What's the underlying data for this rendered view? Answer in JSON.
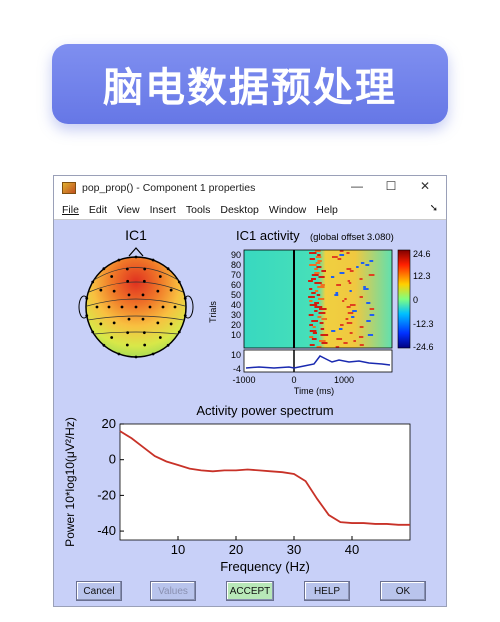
{
  "banner": {
    "title": "脑电数据预处理"
  },
  "window": {
    "title": "pop_prop() - Component 1 properties",
    "controls": [
      "—",
      "☐",
      "✕"
    ]
  },
  "menu": [
    "File",
    "Edit",
    "View",
    "Insert",
    "Tools",
    "Desktop",
    "Window",
    "Help"
  ],
  "topo": {
    "title": "IC1"
  },
  "erpimage": {
    "title": "IC1 activity",
    "subtitle": "(global offset 3.080)",
    "ylabel": "Trials",
    "yticks": [
      "90",
      "80",
      "70",
      "60",
      "50",
      "40",
      "30",
      "20",
      "10"
    ],
    "sub_ytick_top": "10",
    "sub_ytick_bottom": "-4",
    "xlabel": "Time (ms)",
    "xticks": [
      "-1000",
      "0",
      "1000"
    ],
    "colorbar_ticks": [
      "24.6",
      "12.3",
      "0",
      "-12.3",
      "-24.6"
    ]
  },
  "chart_data": {
    "type": "line",
    "title": "Activity power spectrum",
    "xlabel": "Frequency (Hz)",
    "ylabel": "Power 10*log10(μV²/Hz)",
    "xlim": [
      0,
      50
    ],
    "ylim": [
      -45,
      20
    ],
    "xticks": [
      10,
      20,
      30,
      40
    ],
    "yticks": [
      20,
      0,
      -20,
      -40
    ],
    "series": [
      {
        "x": [
          0,
          2,
          4,
          6,
          8,
          10,
          12,
          14,
          16,
          18,
          20,
          22,
          24,
          26,
          28,
          30,
          32,
          34,
          36,
          38,
          40,
          42,
          44,
          46,
          48,
          50
        ],
        "y": [
          16,
          12,
          7,
          2,
          -1,
          -3,
          -5,
          -6,
          -6.5,
          -6,
          -6,
          -5.5,
          -6,
          -6.5,
          -7,
          -8,
          -12,
          -22,
          -31,
          -35,
          -35.5,
          -35.5,
          -36,
          -36,
          -36.5,
          -36.5
        ],
        "color": "#c83228"
      }
    ]
  },
  "buttons": {
    "cancel": "Cancel",
    "values": "Values",
    "accept": "ACCEPT",
    "help": "HELP",
    "ok": "OK"
  }
}
